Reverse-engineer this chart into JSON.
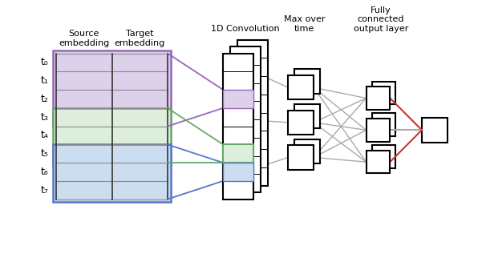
{
  "labels": {
    "source_embedding": "Source\nembedding",
    "target_embedding": "Target\nembedding",
    "conv1d": "1D Convolution",
    "max_over_time": "Max over\ntime",
    "fully_connected": "Fully\nconnected\noutput layer"
  },
  "row_labels": [
    "t₀",
    "t₁",
    "t₂",
    "t₃",
    "t₄",
    "t₅",
    "t₆",
    "t₇"
  ],
  "n_rows": 8,
  "n_cols": 2,
  "purple_bg": "#ddd0ea",
  "purple_border": "#9966bb",
  "green_bg": "#ddeedd",
  "green_border": "#66aa66",
  "blue_bg": "#ccddf0",
  "blue_border": "#5577cc",
  "background_color": "#ffffff",
  "gray_line": "#aaaaaa",
  "red_line": "#cc3333"
}
